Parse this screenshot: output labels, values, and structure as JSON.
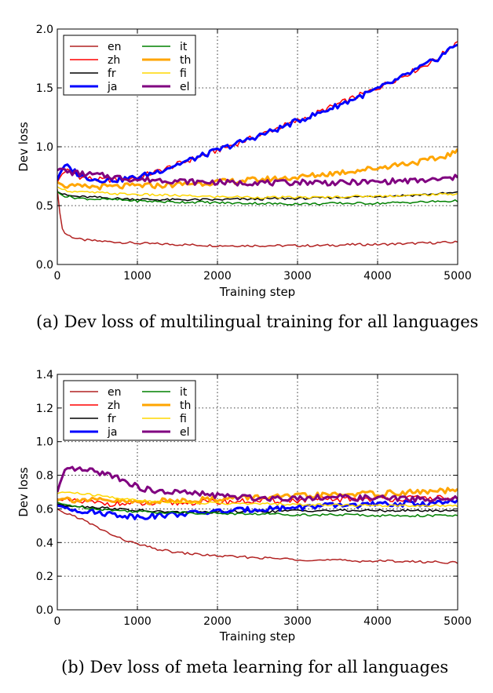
{
  "captions": {
    "a": "(a) Dev loss of multilingual training for all languages",
    "b": "(b) Dev loss of meta learning for all languages"
  },
  "chart_data": [
    {
      "type": "line",
      "xlabel": "Training step",
      "ylabel": "Dev loss",
      "xlim": [
        0,
        5000
      ],
      "ylim": [
        0,
        2.0
      ],
      "xticks": [
        0,
        1000,
        2000,
        3000,
        4000,
        5000
      ],
      "yticks": [
        0.0,
        0.5,
        1.0,
        1.5,
        2.0
      ],
      "ytick_labels": [
        "0.0",
        "0.5",
        "1.0",
        "1.5",
        "2.0"
      ],
      "grid": true,
      "legend_position": "top-left",
      "x": [
        0,
        50,
        100,
        200,
        300,
        500,
        750,
        1000,
        1250,
        1500,
        1750,
        2000,
        2250,
        2500,
        2750,
        3000,
        3250,
        3500,
        3750,
        4000,
        4250,
        4500,
        4750,
        5000
      ],
      "series": [
        {
          "name": "en",
          "color": "#b22222",
          "width": 1.5,
          "values": [
            0.64,
            0.32,
            0.26,
            0.23,
            0.21,
            0.2,
            0.19,
            0.18,
            0.175,
            0.17,
            0.165,
            0.16,
            0.16,
            0.16,
            0.16,
            0.16,
            0.16,
            0.165,
            0.17,
            0.17,
            0.175,
            0.18,
            0.185,
            0.19
          ]
        },
        {
          "name": "zh",
          "color": "#ff0000",
          "width": 1.5,
          "values": [
            0.7,
            0.76,
            0.8,
            0.78,
            0.74,
            0.72,
            0.72,
            0.74,
            0.79,
            0.85,
            0.91,
            0.97,
            1.03,
            1.09,
            1.16,
            1.22,
            1.29,
            1.36,
            1.43,
            1.5,
            1.58,
            1.66,
            1.75,
            1.9
          ]
        },
        {
          "name": "fr",
          "color": "#000000",
          "width": 1.5,
          "values": [
            0.62,
            0.6,
            0.59,
            0.58,
            0.575,
            0.57,
            0.56,
            0.555,
            0.55,
            0.55,
            0.55,
            0.55,
            0.555,
            0.555,
            0.56,
            0.56,
            0.565,
            0.57,
            0.575,
            0.58,
            0.585,
            0.59,
            0.6,
            0.61
          ]
        },
        {
          "name": "ja",
          "color": "#0000ff",
          "width": 3,
          "values": [
            0.72,
            0.8,
            0.84,
            0.8,
            0.75,
            0.72,
            0.72,
            0.74,
            0.79,
            0.85,
            0.91,
            0.97,
            1.03,
            1.09,
            1.15,
            1.22,
            1.28,
            1.35,
            1.42,
            1.49,
            1.57,
            1.66,
            1.75,
            1.88
          ]
        },
        {
          "name": "it",
          "color": "#008000",
          "width": 1.5,
          "values": [
            0.62,
            0.59,
            0.58,
            0.57,
            0.56,
            0.555,
            0.55,
            0.54,
            0.535,
            0.53,
            0.53,
            0.525,
            0.52,
            0.52,
            0.515,
            0.515,
            0.515,
            0.52,
            0.52,
            0.52,
            0.525,
            0.53,
            0.535,
            0.54
          ]
        },
        {
          "name": "th",
          "color": "#ffa500",
          "width": 3,
          "values": [
            0.7,
            0.68,
            0.67,
            0.66,
            0.66,
            0.66,
            0.66,
            0.67,
            0.67,
            0.68,
            0.69,
            0.7,
            0.71,
            0.72,
            0.73,
            0.74,
            0.76,
            0.78,
            0.8,
            0.82,
            0.85,
            0.87,
            0.9,
            0.96
          ]
        },
        {
          "name": "fi",
          "color": "#ffd700",
          "width": 1.5,
          "values": [
            0.66,
            0.64,
            0.63,
            0.62,
            0.615,
            0.61,
            0.6,
            0.595,
            0.59,
            0.585,
            0.58,
            0.575,
            0.575,
            0.57,
            0.57,
            0.57,
            0.57,
            0.575,
            0.58,
            0.58,
            0.585,
            0.59,
            0.595,
            0.6
          ]
        },
        {
          "name": "el",
          "color": "#800080",
          "width": 3,
          "values": [
            0.8,
            0.82,
            0.79,
            0.78,
            0.77,
            0.76,
            0.74,
            0.72,
            0.72,
            0.71,
            0.7,
            0.7,
            0.69,
            0.7,
            0.69,
            0.7,
            0.7,
            0.69,
            0.7,
            0.7,
            0.71,
            0.71,
            0.72,
            0.74
          ]
        }
      ]
    },
    {
      "type": "line",
      "xlabel": "Training step",
      "ylabel": "Dev loss",
      "xlim": [
        0,
        5000
      ],
      "ylim": [
        0,
        1.4
      ],
      "xticks": [
        0,
        1000,
        2000,
        3000,
        4000,
        5000
      ],
      "yticks": [
        0.0,
        0.2,
        0.4,
        0.6,
        0.8,
        1.0,
        1.2,
        1.4
      ],
      "ytick_labels": [
        "0.0",
        "0.2",
        "0.4",
        "0.6",
        "0.8",
        "1.0",
        "1.2",
        "1.4"
      ],
      "grid": true,
      "legend_position": "top-left",
      "x": [
        0,
        50,
        100,
        200,
        300,
        500,
        750,
        1000,
        1250,
        1500,
        1750,
        2000,
        2250,
        2500,
        2750,
        3000,
        3250,
        3500,
        3750,
        4000,
        4250,
        4500,
        4750,
        5000
      ],
      "series": [
        {
          "name": "en",
          "color": "#b22222",
          "width": 1.5,
          "values": [
            0.6,
            0.585,
            0.575,
            0.56,
            0.54,
            0.49,
            0.43,
            0.39,
            0.36,
            0.34,
            0.33,
            0.32,
            0.315,
            0.31,
            0.305,
            0.3,
            0.295,
            0.295,
            0.29,
            0.29,
            0.29,
            0.285,
            0.285,
            0.28
          ]
        },
        {
          "name": "zh",
          "color": "#ff0000",
          "width": 1.5,
          "values": [
            0.66,
            0.65,
            0.65,
            0.645,
            0.64,
            0.635,
            0.63,
            0.63,
            0.63,
            0.635,
            0.64,
            0.64,
            0.645,
            0.645,
            0.65,
            0.65,
            0.655,
            0.655,
            0.66,
            0.66,
            0.66,
            0.665,
            0.665,
            0.66
          ]
        },
        {
          "name": "fr",
          "color": "#000000",
          "width": 1.5,
          "values": [
            0.63,
            0.625,
            0.62,
            0.62,
            0.615,
            0.61,
            0.6,
            0.59,
            0.585,
            0.58,
            0.58,
            0.58,
            0.585,
            0.585,
            0.585,
            0.59,
            0.59,
            0.59,
            0.59,
            0.59,
            0.59,
            0.59,
            0.59,
            0.59
          ]
        },
        {
          "name": "ja",
          "color": "#0000ff",
          "width": 3,
          "values": [
            0.62,
            0.615,
            0.61,
            0.6,
            0.59,
            0.58,
            0.565,
            0.555,
            0.56,
            0.57,
            0.575,
            0.585,
            0.59,
            0.6,
            0.605,
            0.61,
            0.615,
            0.62,
            0.625,
            0.625,
            0.63,
            0.63,
            0.635,
            0.64
          ]
        },
        {
          "name": "it",
          "color": "#008000",
          "width": 1.5,
          "values": [
            0.64,
            0.63,
            0.625,
            0.62,
            0.61,
            0.6,
            0.59,
            0.585,
            0.58,
            0.58,
            0.575,
            0.575,
            0.57,
            0.57,
            0.57,
            0.565,
            0.565,
            0.565,
            0.565,
            0.56,
            0.56,
            0.56,
            0.56,
            0.56
          ]
        },
        {
          "name": "th",
          "color": "#ffa500",
          "width": 3,
          "values": [
            0.65,
            0.66,
            0.66,
            0.655,
            0.655,
            0.65,
            0.645,
            0.64,
            0.645,
            0.65,
            0.655,
            0.66,
            0.665,
            0.67,
            0.67,
            0.675,
            0.68,
            0.685,
            0.69,
            0.69,
            0.695,
            0.7,
            0.705,
            0.71
          ]
        },
        {
          "name": "fi",
          "color": "#ffd700",
          "width": 1.5,
          "values": [
            0.69,
            0.7,
            0.7,
            0.695,
            0.69,
            0.68,
            0.665,
            0.65,
            0.645,
            0.64,
            0.635,
            0.635,
            0.63,
            0.63,
            0.63,
            0.625,
            0.625,
            0.625,
            0.62,
            0.62,
            0.62,
            0.62,
            0.62,
            0.62
          ]
        },
        {
          "name": "el",
          "color": "#800080",
          "width": 3,
          "values": [
            0.7,
            0.78,
            0.82,
            0.84,
            0.83,
            0.82,
            0.79,
            0.73,
            0.7,
            0.7,
            0.69,
            0.68,
            0.67,
            0.665,
            0.665,
            0.665,
            0.67,
            0.67,
            0.665,
            0.665,
            0.66,
            0.66,
            0.655,
            0.66
          ]
        }
      ]
    }
  ]
}
